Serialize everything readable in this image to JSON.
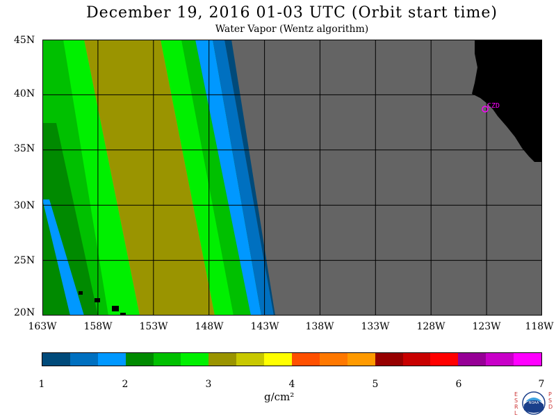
{
  "title": "December 19, 2016  01-03 UTC  (Orbit start time)",
  "subtitle": "Water Vapor (Wentz algorithm)",
  "lat_labels": [
    "45N",
    "40N",
    "35N",
    "30N",
    "25N",
    "20N"
  ],
  "lon_labels": [
    "163W",
    "158W",
    "153W",
    "148W",
    "143W",
    "138W",
    "133W",
    "128W",
    "123W",
    "118W"
  ],
  "map_extent": {
    "lon_min": -163,
    "lon_max": -118,
    "lat_min": 20,
    "lat_max": 45
  },
  "station_label": "CZD",
  "colorbar": {
    "unit": "g/cm²",
    "ticks": [
      "1",
      "2",
      "3",
      "4",
      "5",
      "6",
      "7"
    ],
    "colors": [
      "#004a7a",
      "#0070c0",
      "#0098ff",
      "#008a00",
      "#00c000",
      "#00f000",
      "#9a9400",
      "#c8c800",
      "#ffff00",
      "#ff5000",
      "#ff7800",
      "#ff9a00",
      "#960000",
      "#c80000",
      "#ff0000",
      "#960096",
      "#c800c8",
      "#ff00ff"
    ]
  },
  "colors": {
    "no_data": "#646464",
    "land": "#000000",
    "station": "#ff00ff"
  },
  "logo": {
    "left_letters": "ESRL",
    "right_letters": "PSD",
    "center": "NOAA"
  }
}
